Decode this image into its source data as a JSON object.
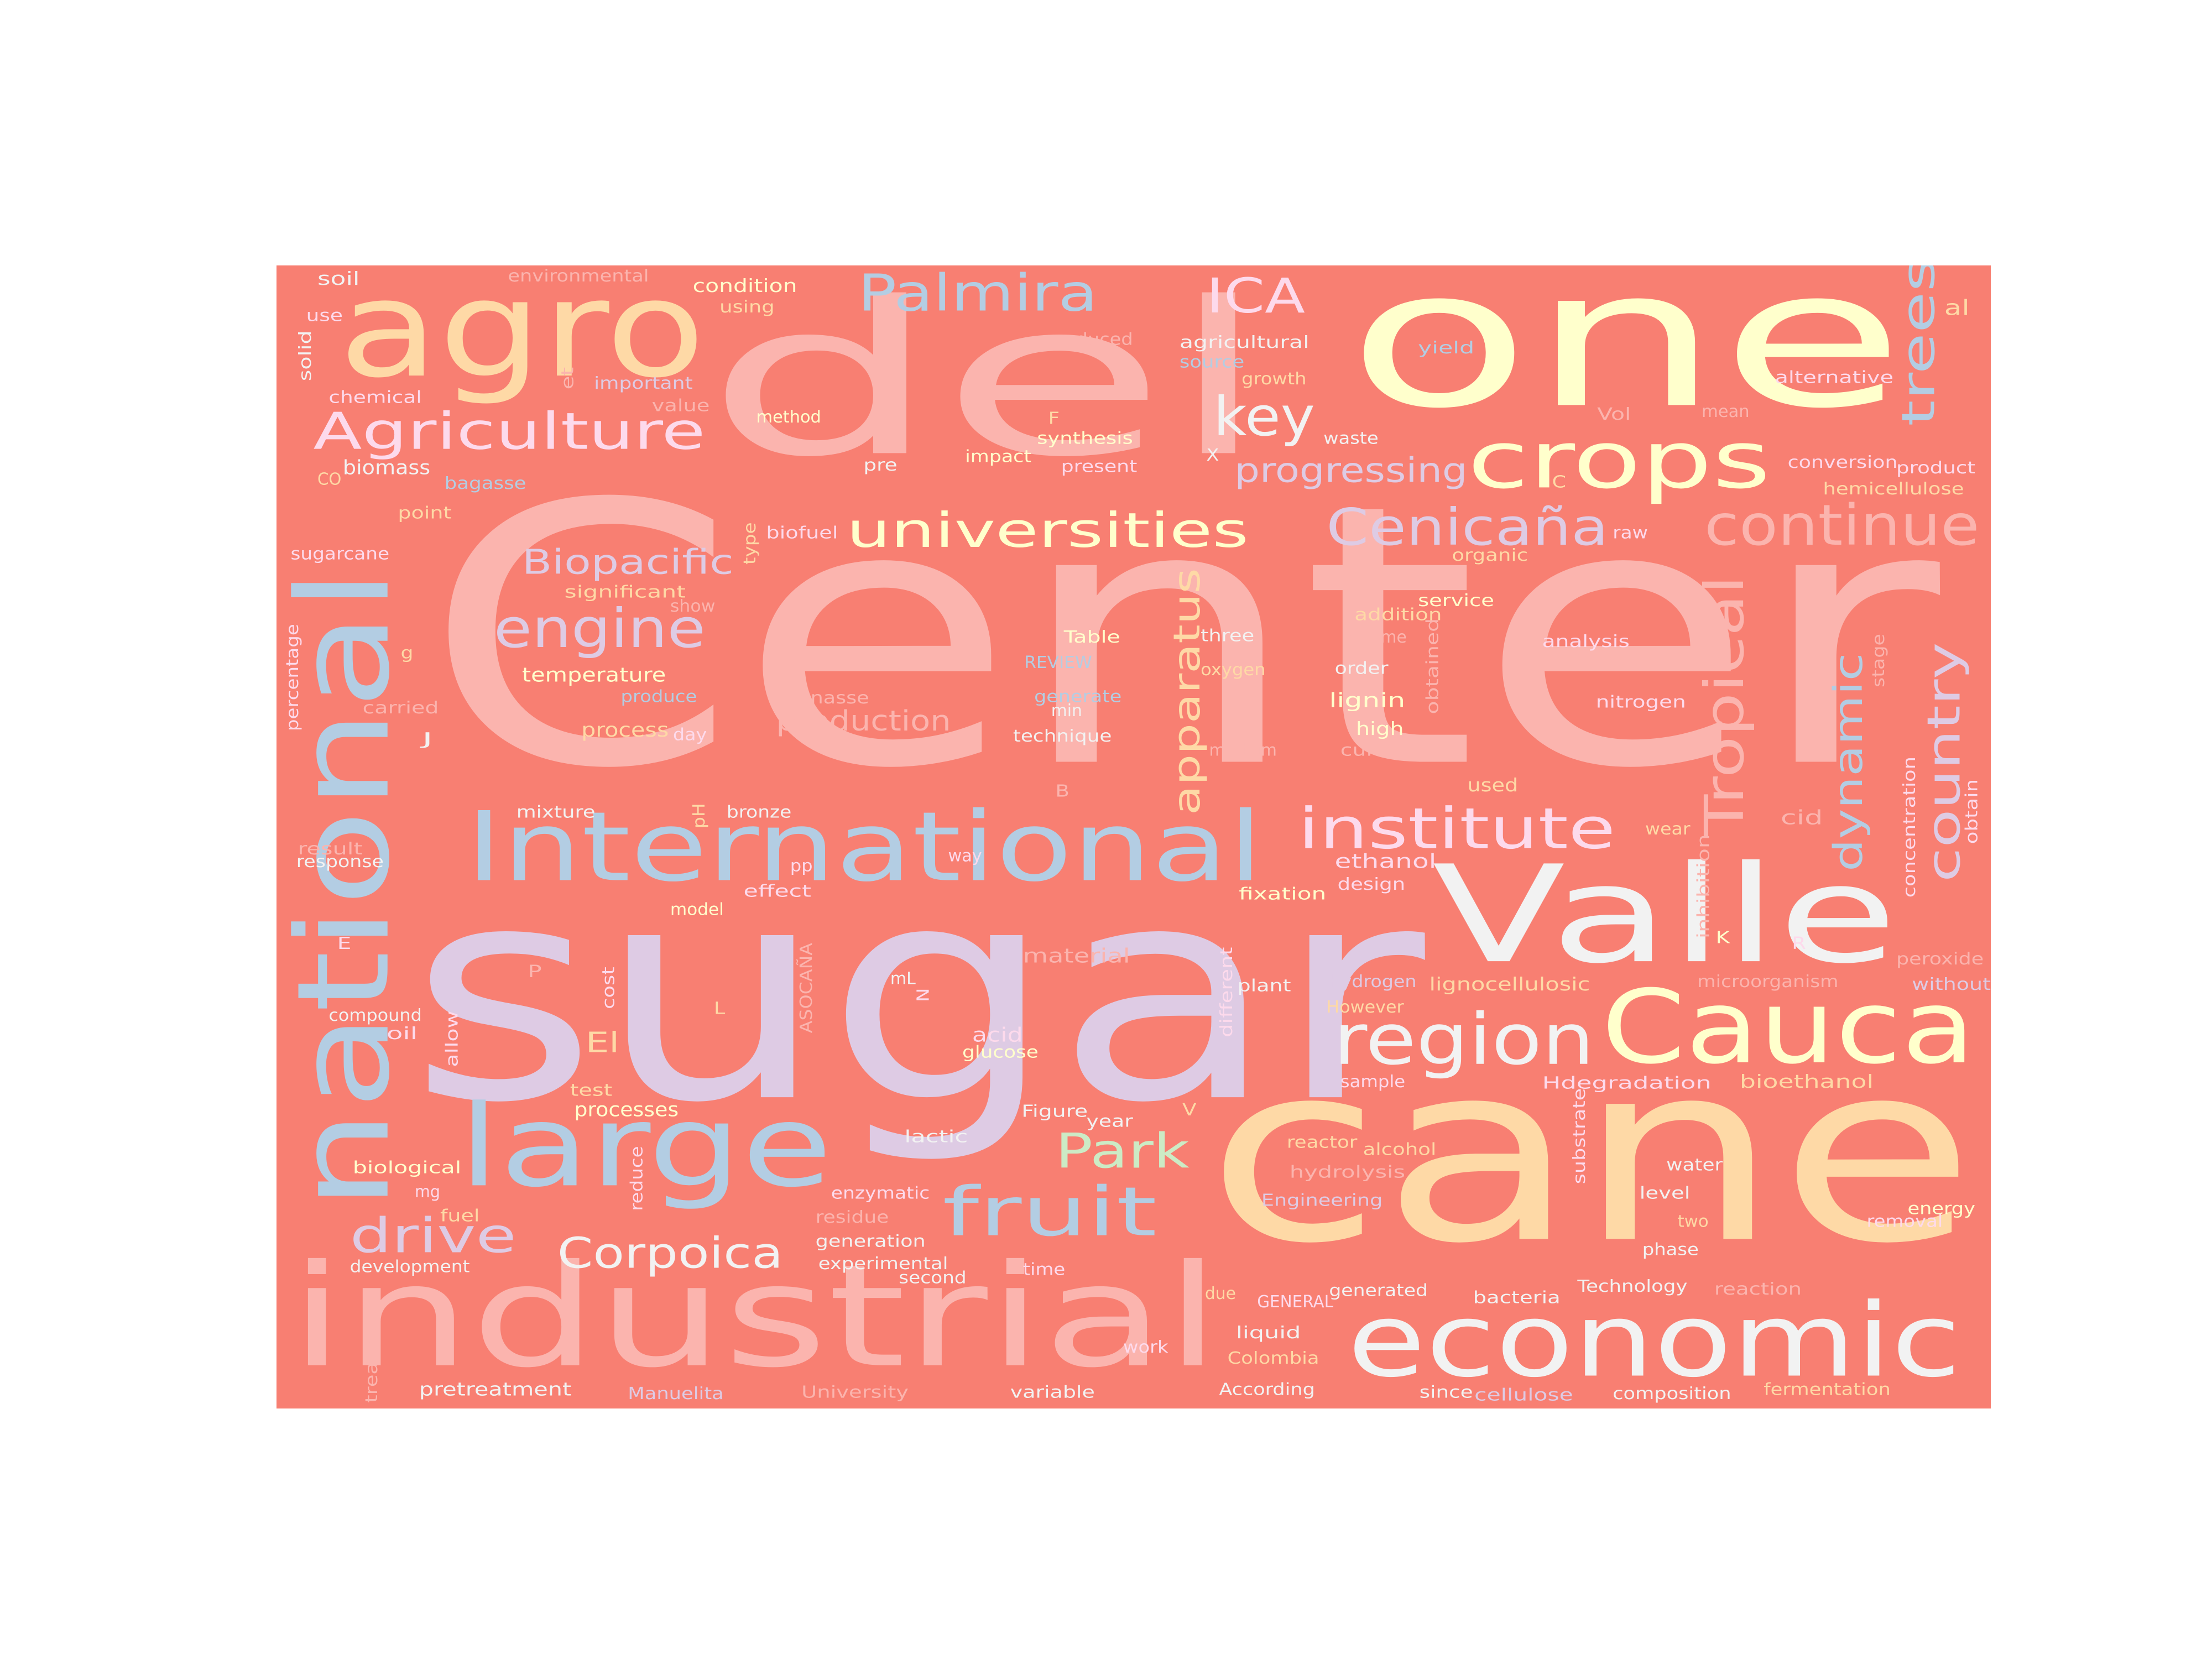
{
  "cloud": {
    "background": "#f87f72",
    "palette": [
      "#fbb4ae",
      "#b3cde3",
      "#ccebc5",
      "#decbe4",
      "#fed9a6",
      "#ffffcc",
      "#e5d8bd",
      "#fddaec",
      "#f2f2f2"
    ],
    "words": [
      {
        "text": "Center",
        "color": "#fbb4ae"
      },
      {
        "text": "sugar",
        "color": "#decbe4"
      },
      {
        "text": "cane",
        "color": "#fed9a6"
      },
      {
        "text": "one",
        "color": "#ffffcc"
      },
      {
        "text": "del",
        "color": "#fbb4ae"
      },
      {
        "text": "industrial",
        "color": "#fbb4ae"
      },
      {
        "text": "national",
        "color": "#b3cde3"
      },
      {
        "text": "Valle",
        "color": "#f2f2f2"
      },
      {
        "text": "agro",
        "color": "#fed9a6"
      },
      {
        "text": "International",
        "color": "#b3cde3"
      },
      {
        "text": "economic",
        "color": "#f2f2f2"
      },
      {
        "text": "large",
        "color": "#b3cde3"
      },
      {
        "text": "Cauca",
        "color": "#ffffcc"
      },
      {
        "text": "crops",
        "color": "#ffffcc"
      },
      {
        "text": "region",
        "color": "#f2f2f2"
      },
      {
        "text": "institute",
        "color": "#fddaec"
      },
      {
        "text": "Tropical",
        "color": "#fbb4ae"
      },
      {
        "text": "Agriculture",
        "color": "#fddaec"
      },
      {
        "text": "universities",
        "color": "#ffffcc"
      },
      {
        "text": "fruit",
        "color": "#b3cde3"
      },
      {
        "text": "continue",
        "color": "#fbb4ae"
      },
      {
        "text": "Cenicaña",
        "color": "#decbe4"
      },
      {
        "text": "engine",
        "color": "#decbe4"
      },
      {
        "text": "Palmira",
        "color": "#b3cde3"
      },
      {
        "text": "apparatus",
        "color": "#fed9a6"
      },
      {
        "text": "dynamic",
        "color": "#b3cde3"
      },
      {
        "text": "country",
        "color": "#decbe4"
      },
      {
        "text": "key",
        "color": "#f2f2f2"
      },
      {
        "text": "Corpoica",
        "color": "#f2f2f2"
      },
      {
        "text": "drive",
        "color": "#decbe4"
      },
      {
        "text": "trees",
        "color": "#b3cde3"
      },
      {
        "text": "ICA",
        "color": "#fddaec"
      },
      {
        "text": "Park",
        "color": "#ccebc5"
      },
      {
        "text": "progressing",
        "color": "#decbe4"
      },
      {
        "text": "Biopacific",
        "color": "#decbe4"
      },
      {
        "text": "production",
        "color": "#fbb4ae"
      },
      {
        "text": "El",
        "color": "#fed9a6"
      },
      {
        "text": "environmental",
        "color": "#fbb4ae"
      },
      {
        "text": "condition",
        "color": "#ffffcc"
      },
      {
        "text": "soil",
        "color": "#f2f2f2"
      },
      {
        "text": "using",
        "color": "#fed9a6"
      },
      {
        "text": "use",
        "color": "#fddaec"
      },
      {
        "text": "produced",
        "color": "#fbb4ae"
      },
      {
        "text": "agricultural",
        "color": "#f2f2f2"
      },
      {
        "text": "yield",
        "color": "#b3cde3"
      },
      {
        "text": "al",
        "color": "#fed9a6"
      },
      {
        "text": "source",
        "color": "#b3cde3"
      },
      {
        "text": "solid",
        "color": "#f2f2f2"
      },
      {
        "text": "et",
        "color": "#fbb4ae"
      },
      {
        "text": "important",
        "color": "#decbe4"
      },
      {
        "text": "growth",
        "color": "#fed9a6"
      },
      {
        "text": "alternative",
        "color": "#fddaec"
      },
      {
        "text": "chemical",
        "color": "#fddaec"
      },
      {
        "text": "value",
        "color": "#fbb4ae"
      },
      {
        "text": "method",
        "color": "#ffffcc"
      },
      {
        "text": "F",
        "color": "#fed9a6"
      },
      {
        "text": "waste",
        "color": "#f2f2f2"
      },
      {
        "text": "Vol",
        "color": "#fbb4ae"
      },
      {
        "text": "mean",
        "color": "#fbb4ae"
      },
      {
        "text": "synthesis",
        "color": "#ffffcc"
      },
      {
        "text": "X",
        "color": "#f2f2f2"
      },
      {
        "text": "biomass",
        "color": "#f2f2f2"
      },
      {
        "text": "CO",
        "color": "#fed9a6"
      },
      {
        "text": "bagasse",
        "color": "#b3cde3"
      },
      {
        "text": "impact",
        "color": "#ffffcc"
      },
      {
        "text": "pre",
        "color": "#f2f2f2"
      },
      {
        "text": "present",
        "color": "#fddaec"
      },
      {
        "text": "conversion",
        "color": "#fddaec"
      },
      {
        "text": "product",
        "color": "#fddaec"
      },
      {
        "text": "C",
        "color": "#fed9a6"
      },
      {
        "text": "hemicellulose",
        "color": "#fed9a6"
      },
      {
        "text": "point",
        "color": "#fed9a6"
      },
      {
        "text": "sugarcane",
        "color": "#fddaec"
      },
      {
        "text": "type",
        "color": "#fed9a6"
      },
      {
        "text": "biofuel",
        "color": "#fddaec"
      },
      {
        "text": "raw",
        "color": "#fddaec"
      },
      {
        "text": "organic",
        "color": "#fed9a6"
      },
      {
        "text": "significant",
        "color": "#fed9a6"
      },
      {
        "text": "show",
        "color": "#fbb4ae"
      },
      {
        "text": "service",
        "color": "#ffffcc"
      },
      {
        "text": "addition",
        "color": "#fed9a6"
      },
      {
        "text": "enzyme",
        "color": "#fbb4ae"
      },
      {
        "text": "analysis",
        "color": "#fddaec"
      },
      {
        "text": "Table",
        "color": "#ffffcc"
      },
      {
        "text": "three",
        "color": "#f2f2f2"
      },
      {
        "text": "REVIEW",
        "color": "#b3cde3"
      },
      {
        "text": "oxygen",
        "color": "#fed9a6"
      },
      {
        "text": "order",
        "color": "#f2f2f2"
      },
      {
        "text": "obtained",
        "color": "#fbb4ae"
      },
      {
        "text": "stage",
        "color": "#fbb4ae"
      },
      {
        "text": "percentage",
        "color": "#fddaec"
      },
      {
        "text": "g",
        "color": "#fed9a6"
      },
      {
        "text": "temperature",
        "color": "#ffffcc"
      },
      {
        "text": "produce",
        "color": "#b3cde3"
      },
      {
        "text": "vinasse",
        "color": "#fbb4ae"
      },
      {
        "text": "generate",
        "color": "#b3cde3"
      },
      {
        "text": "lignin",
        "color": "#ffffcc"
      },
      {
        "text": "nitrogen",
        "color": "#fddaec"
      },
      {
        "text": "carried",
        "color": "#fbb4ae"
      },
      {
        "text": "J",
        "color": "#f2f2f2"
      },
      {
        "text": "process",
        "color": "#fed9a6"
      },
      {
        "text": "day",
        "color": "#fddaec"
      },
      {
        "text": "min",
        "color": "#f2f2f2"
      },
      {
        "text": "technique",
        "color": "#f2f2f2"
      },
      {
        "text": "high",
        "color": "#ffffcc"
      },
      {
        "text": "medium",
        "color": "#fbb4ae"
      },
      {
        "text": "culture",
        "color": "#fbb4ae"
      },
      {
        "text": "concentration",
        "color": "#fddaec"
      },
      {
        "text": "obtain",
        "color": "#fddaec"
      },
      {
        "text": "B",
        "color": "#fbb4ae"
      },
      {
        "text": "used",
        "color": "#fed9a6"
      },
      {
        "text": "mixture",
        "color": "#f2f2f2"
      },
      {
        "text": "pH",
        "color": "#fed9a6"
      },
      {
        "text": "bronze",
        "color": "#f2f2f2"
      },
      {
        "text": "cid",
        "color": "#fbb4ae"
      },
      {
        "text": "wear",
        "color": "#fed9a6"
      },
      {
        "text": "result",
        "color": "#fbb4ae"
      },
      {
        "text": "response",
        "color": "#f2f2f2"
      },
      {
        "text": "pp",
        "color": "#fddaec"
      },
      {
        "text": "way",
        "color": "#fddaec"
      },
      {
        "text": "ethanol",
        "color": "#fddaec"
      },
      {
        "text": "inhibition",
        "color": "#fbb4ae"
      },
      {
        "text": "design",
        "color": "#fddaec"
      },
      {
        "text": "effect",
        "color": "#fddaec"
      },
      {
        "text": "fixation",
        "color": "#ffffcc"
      },
      {
        "text": "model",
        "color": "#ffffcc"
      },
      {
        "text": "E",
        "color": "#fddaec"
      },
      {
        "text": "K",
        "color": "#ffffcc"
      },
      {
        "text": "R",
        "color": "#fddaec"
      },
      {
        "text": "material",
        "color": "#fbb4ae"
      },
      {
        "text": "peroxide",
        "color": "#fbb4ae"
      },
      {
        "text": "P",
        "color": "#fbb4ae"
      },
      {
        "text": "ASOCAÑA",
        "color": "#fbb4ae"
      },
      {
        "text": "mL",
        "color": "#f2f2f2"
      },
      {
        "text": "cost",
        "color": "#fddaec"
      },
      {
        "text": "different",
        "color": "#fddaec"
      },
      {
        "text": "plant",
        "color": "#f2f2f2"
      },
      {
        "text": "hydrogen",
        "color": "#decbe4"
      },
      {
        "text": "lignocellulosic",
        "color": "#fed9a6"
      },
      {
        "text": "microorganism",
        "color": "#fbb4ae"
      },
      {
        "text": "without",
        "color": "#decbe4"
      },
      {
        "text": "compound",
        "color": "#f2f2f2"
      },
      {
        "text": "N",
        "color": "#fddaec"
      },
      {
        "text": "L",
        "color": "#fed9a6"
      },
      {
        "text": "allow",
        "color": "#fddaec"
      },
      {
        "text": "However",
        "color": "#fed9a6"
      },
      {
        "text": "oil",
        "color": "#fddaec"
      },
      {
        "text": "acid",
        "color": "#fddaec"
      },
      {
        "text": "glucose",
        "color": "#ffffcc"
      },
      {
        "text": "sample",
        "color": "#fddaec"
      },
      {
        "text": "Hdegradation",
        "color": "#fddaec"
      },
      {
        "text": "bioethanol",
        "color": "#fed9a6"
      },
      {
        "text": "test",
        "color": "#fed9a6"
      },
      {
        "text": "processes",
        "color": "#ffffcc"
      },
      {
        "text": "Figure",
        "color": "#f2f2f2"
      },
      {
        "text": "V",
        "color": "#fed9a6"
      },
      {
        "text": "year",
        "color": "#f2f2f2"
      },
      {
        "text": "substrate",
        "color": "#fddaec"
      },
      {
        "text": "lactic",
        "color": "#f2f2f2"
      },
      {
        "text": "reactor",
        "color": "#fed9a6"
      },
      {
        "text": "alcohol",
        "color": "#fed9a6"
      },
      {
        "text": "biological",
        "color": "#ffffcc"
      },
      {
        "text": "hydrolysis",
        "color": "#fbb4ae"
      },
      {
        "text": "water",
        "color": "#f2f2f2"
      },
      {
        "text": "mg",
        "color": "#fddaec"
      },
      {
        "text": "reduce",
        "color": "#fddaec"
      },
      {
        "text": "enzymatic",
        "color": "#fddaec"
      },
      {
        "text": "Engineering",
        "color": "#decbe4"
      },
      {
        "text": "level",
        "color": "#f2f2f2"
      },
      {
        "text": "energy",
        "color": "#ffffcc"
      },
      {
        "text": "fuel",
        "color": "#fed9a6"
      },
      {
        "text": "residue",
        "color": "#fbb4ae"
      },
      {
        "text": "two",
        "color": "#fed9a6"
      },
      {
        "text": "removal",
        "color": "#fddaec"
      },
      {
        "text": "generation",
        "color": "#f2f2f2"
      },
      {
        "text": "phase",
        "color": "#f2f2f2"
      },
      {
        "text": "development",
        "color": "#f2f2f2"
      },
      {
        "text": "experimental",
        "color": "#f2f2f2"
      },
      {
        "text": "time",
        "color": "#fddaec"
      },
      {
        "text": "second",
        "color": "#f2f2f2"
      },
      {
        "text": "Technology",
        "color": "#f2f2f2"
      },
      {
        "text": "reaction",
        "color": "#fbb4ae"
      },
      {
        "text": "due",
        "color": "#fed9a6"
      },
      {
        "text": "GENERAL",
        "color": "#fddaec"
      },
      {
        "text": "generated",
        "color": "#f2f2f2"
      },
      {
        "text": "bacteria",
        "color": "#f2f2f2"
      },
      {
        "text": "treatment",
        "color": "#fbb4ae"
      },
      {
        "text": "liquid",
        "color": "#f2f2f2"
      },
      {
        "text": "work",
        "color": "#fddaec"
      },
      {
        "text": "Colombia",
        "color": "#fed9a6"
      },
      {
        "text": "pretreatment",
        "color": "#f2f2f2"
      },
      {
        "text": "Manuelita",
        "color": "#decbe4"
      },
      {
        "text": "University",
        "color": "#fbb4ae"
      },
      {
        "text": "variable",
        "color": "#f2f2f2"
      },
      {
        "text": "According",
        "color": "#f2f2f2"
      },
      {
        "text": "since",
        "color": "#f2f2f2"
      },
      {
        "text": "cellulose",
        "color": "#decbe4"
      },
      {
        "text": "composition",
        "color": "#f2f2f2"
      },
      {
        "text": "fermentation",
        "color": "#fed9a6"
      }
    ]
  }
}
